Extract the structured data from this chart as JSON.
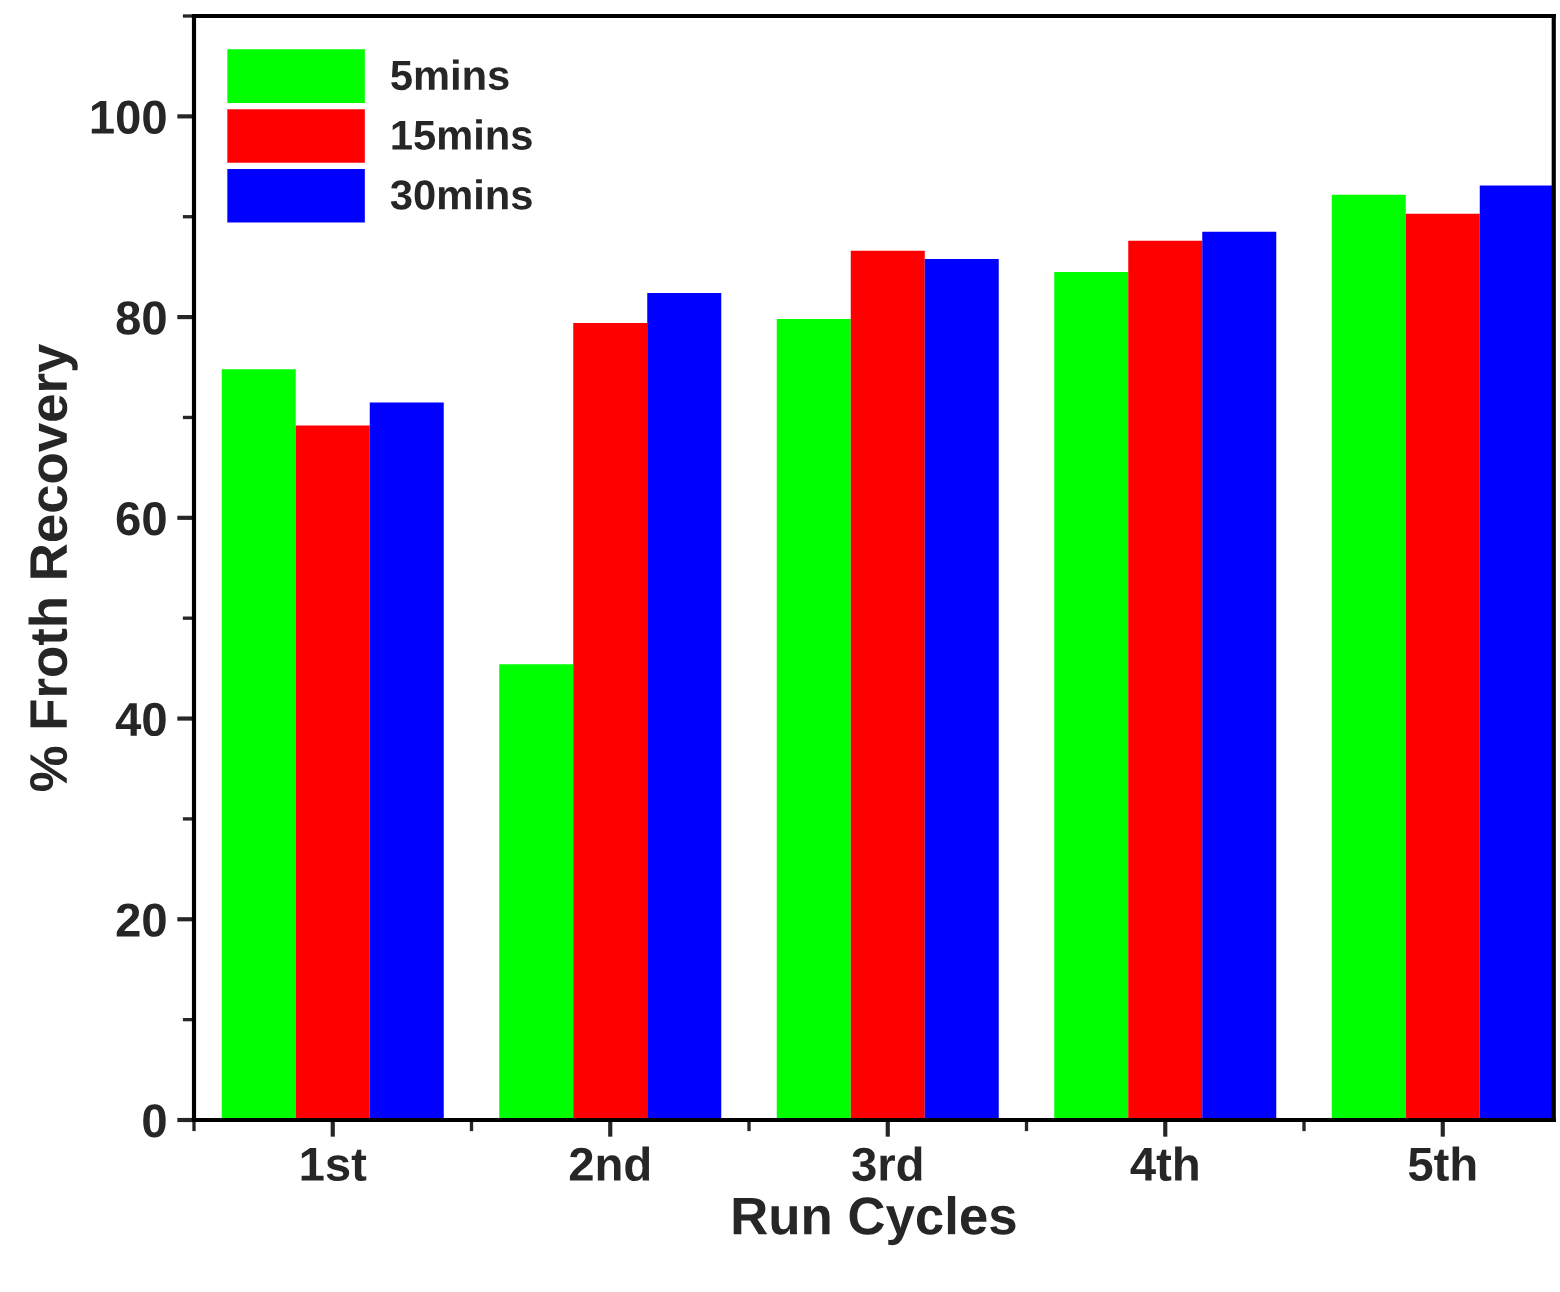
{
  "chart_data": {
    "type": "bar",
    "xlabel": "Run Cycles",
    "ylabel": "% Froth Recovery",
    "categories": [
      "1st",
      "2nd",
      "3rd",
      "4th",
      "5th"
    ],
    "series": [
      {
        "name": "5mins",
        "color": "#00ff00",
        "values": [
          74.8,
          45.4,
          79.8,
          84.5,
          92.2
        ]
      },
      {
        "name": "15mins",
        "color": "#ff0000",
        "values": [
          69.2,
          79.4,
          86.6,
          87.6,
          90.3
        ]
      },
      {
        "name": "30mins",
        "color": "#0000ff",
        "values": [
          71.5,
          82.4,
          85.8,
          88.5,
          93.1
        ]
      }
    ],
    "ylim": [
      0,
      110
    ],
    "yticks": [
      0,
      20,
      40,
      60,
      80,
      100
    ],
    "grid": false,
    "legend": "top left"
  }
}
